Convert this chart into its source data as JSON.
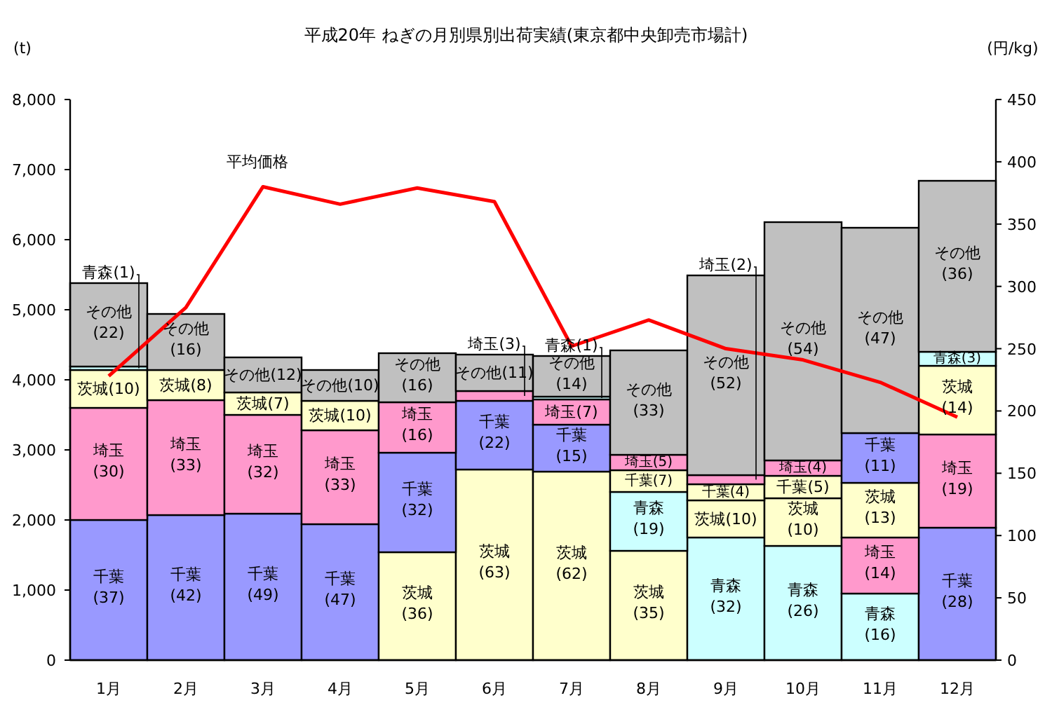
{
  "chart_data": {
    "type": "bar",
    "stacked": true,
    "title": "平成20年 ねぎの月別県別出荷実績(東京都中央卸売市場計)",
    "ylabel": "(t)",
    "y2label": "(円/kg)",
    "categories": [
      "1月",
      "2月",
      "3月",
      "4月",
      "5月",
      "6月",
      "7月",
      "8月",
      "9月",
      "10月",
      "11月",
      "12月"
    ],
    "ylim": [
      0,
      8000
    ],
    "yticks": [
      {
        "value": 0,
        "label": "0"
      },
      {
        "value": 1000,
        "label": "1,000"
      },
      {
        "value": 2000,
        "label": "2,000"
      },
      {
        "value": 3000,
        "label": "3,000"
      },
      {
        "value": 4000,
        "label": "4,000"
      },
      {
        "value": 5000,
        "label": "5,000"
      },
      {
        "value": 6000,
        "label": "6,000"
      },
      {
        "value": 7000,
        "label": "7,000"
      },
      {
        "value": 8000,
        "label": "8,000"
      }
    ],
    "y2lim": [
      0,
      450
    ],
    "y2ticks": [
      0,
      50,
      100,
      150,
      200,
      250,
      300,
      350,
      400,
      450
    ],
    "series": [
      {
        "values": [
          2000,
          2070,
          2090,
          1940,
          1540,
          2720,
          2690,
          1560,
          1750,
          1630,
          950,
          1890
        ],
        "colors": [
          "#9999ff",
          "#9999ff",
          "#9999ff",
          "#9999ff",
          "#ffffcc",
          "#ffffcc",
          "#ffffcc",
          "#ffffcc",
          "#ccffff",
          "#ccffff",
          "#ccffff",
          "#9999ff"
        ],
        "value_labels": [
          "千葉(37)",
          "千葉(42)",
          "千葉(49)",
          "千葉(47)",
          "茨城(36)",
          "茨城(63)",
          "茨城(62)",
          "茨城(35)",
          "青森(32)",
          "青森(26)",
          "青森(16)",
          "千葉(28)"
        ]
      },
      {
        "values": [
          1600,
          1640,
          1410,
          1340,
          1420,
          980,
          670,
          840,
          530,
          680,
          800,
          1330
        ],
        "colors": [
          "#ff99cc",
          "#ff99cc",
          "#ff99cc",
          "#ff99cc",
          "#9999ff",
          "#9999ff",
          "#9999ff",
          "#ccffff",
          "#ffffcc",
          "#ffffcc",
          "#ff99cc",
          "#ff99cc"
        ],
        "value_labels": [
          "埼玉(30)",
          "埼玉(33)",
          "埼玉(32)",
          "埼玉(33)",
          "千葉(32)",
          "千葉(22)",
          "千葉(15)",
          "青森(19)",
          "茨城(10)",
          "茨城(10)",
          "埼玉(14)",
          "埼玉(19)"
        ]
      },
      {
        "values": [
          540,
          430,
          320,
          420,
          720,
          140,
          360,
          310,
          230,
          320,
          780,
          980
        ],
        "colors": [
          "#ffffcc",
          "#ffffcc",
          "#ffffcc",
          "#ffffcc",
          "#ff99cc",
          "#ff99cc",
          "#ff99cc",
          "#ffffcc",
          "#ffffcc",
          "#ffffcc",
          "#ffffcc",
          "#ffffcc"
        ],
        "value_labels": [
          "茨城(10)",
          "茨城(8)",
          "茨城(7)",
          "茨城(10)",
          "埼玉(16)",
          "埼玉(3)",
          "埼玉(7)",
          "千葉(7)",
          "千葉(4)",
          "千葉(5)",
          "茨城(13)",
          "茨城(14)"
        ]
      },
      {
        "values": [
          50,
          null,
          null,
          null,
          null,
          null,
          40,
          220,
          130,
          220,
          710,
          200
        ],
        "colors": [
          "#ccffff",
          null,
          null,
          null,
          null,
          null,
          "#ccffff",
          "#ff99cc",
          "#ff99cc",
          "#ff99cc",
          "#9999ff",
          "#ccffff"
        ],
        "value_labels": [
          "青森(1)",
          null,
          null,
          null,
          null,
          null,
          "青森(1)",
          "埼玉(5)",
          "埼玉(2)",
          "埼玉(4)",
          "千葉(11)",
          "青森(3)"
        ]
      },
      {
        "values": [
          1190,
          800,
          500,
          440,
          700,
          520,
          580,
          1490,
          2850,
          3400,
          2930,
          2440
        ],
        "color": "#c0c0c0",
        "value_labels": [
          "その他(22)",
          "その他(16)",
          "その他(12)",
          "その他(10)",
          "その他(16)",
          "その他(11)",
          "その他(14)",
          "その他(33)",
          "その他(52)",
          "その他(54)",
          "その他(47)",
          "その他(36)"
        ]
      },
      {
        "type": "line",
        "axis": "y2",
        "name": "平均価格",
        "color": "#ff0000",
        "values": [
          228,
          283,
          380,
          366,
          379,
          368,
          252,
          273,
          250,
          241,
          223,
          195
        ]
      }
    ]
  }
}
